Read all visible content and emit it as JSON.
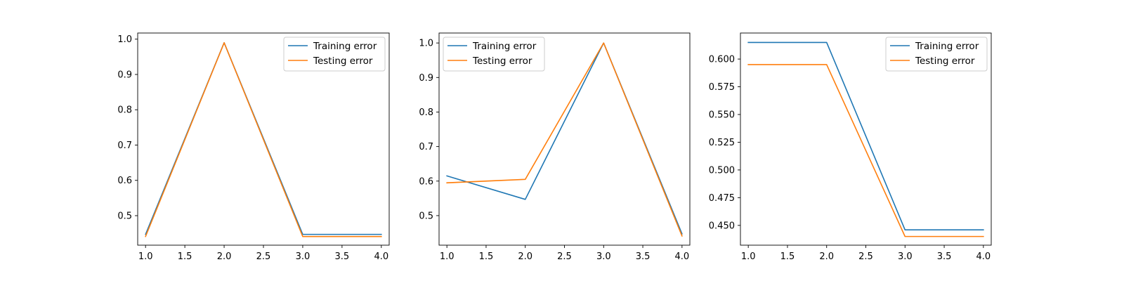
{
  "colors": {
    "training": "#1f77b4",
    "testing": "#ff7f0e"
  },
  "chart_data": [
    {
      "type": "line",
      "x": [
        1.0,
        2.0,
        3.0,
        4.0
      ],
      "series": [
        {
          "name": "Training error",
          "values": [
            0.447,
            0.99,
            0.447,
            0.447
          ]
        },
        {
          "name": "Testing error",
          "values": [
            0.441,
            0.99,
            0.441,
            0.441
          ]
        }
      ],
      "xlim": [
        0.9,
        4.1
      ],
      "ylim": [
        0.4164,
        1.0174
      ],
      "xticks": [
        1.0,
        1.5,
        2.0,
        2.5,
        3.0,
        3.5,
        4.0
      ],
      "xtick_labels": [
        "1.0",
        "1.5",
        "2.0",
        "2.5",
        "3.0",
        "3.5",
        "4.0"
      ],
      "yticks": [
        0.5,
        0.6,
        0.7,
        0.8,
        0.9,
        1.0
      ],
      "ytick_labels": [
        "0.5",
        "0.6",
        "0.7",
        "0.8",
        "0.9",
        "1.0"
      ],
      "legend": "upper-right",
      "grid": false
    },
    {
      "type": "line",
      "x": [
        1.0,
        2.0,
        3.0,
        4.0
      ],
      "series": [
        {
          "name": "Training error",
          "values": [
            0.615,
            0.547,
            1.0,
            0.447
          ]
        },
        {
          "name": "Testing error",
          "values": [
            0.595,
            0.605,
            1.0,
            0.441
          ]
        }
      ],
      "xlim": [
        0.9,
        4.1
      ],
      "ylim": [
        0.4144,
        1.0288
      ],
      "xticks": [
        1.0,
        1.5,
        2.0,
        2.5,
        3.0,
        3.5,
        4.0
      ],
      "xtick_labels": [
        "1.0",
        "1.5",
        "2.0",
        "2.5",
        "3.0",
        "3.5",
        "4.0"
      ],
      "yticks": [
        0.5,
        0.6,
        0.7,
        0.8,
        0.9,
        1.0
      ],
      "ytick_labels": [
        "0.5",
        "0.6",
        "0.7",
        "0.8",
        "0.9",
        "1.0"
      ],
      "legend": "upper-left",
      "grid": false
    },
    {
      "type": "line",
      "x": [
        1.0,
        2.0,
        3.0,
        4.0
      ],
      "series": [
        {
          "name": "Training error",
          "values": [
            0.615,
            0.615,
            0.446,
            0.446
          ]
        },
        {
          "name": "Testing error",
          "values": [
            0.595,
            0.595,
            0.44,
            0.44
          ]
        }
      ],
      "xlim": [
        0.9,
        4.1
      ],
      "ylim": [
        0.43216,
        0.62349
      ],
      "xticks": [
        1.0,
        1.5,
        2.0,
        2.5,
        3.0,
        3.5,
        4.0
      ],
      "xtick_labels": [
        "1.0",
        "1.5",
        "2.0",
        "2.5",
        "3.0",
        "3.5",
        "4.0"
      ],
      "yticks": [
        0.45,
        0.475,
        0.5,
        0.525,
        0.55,
        0.575,
        0.6
      ],
      "ytick_labels": [
        "0.450",
        "0.475",
        "0.500",
        "0.525",
        "0.550",
        "0.575",
        "0.600"
      ],
      "legend": "upper-right",
      "grid": false
    }
  ]
}
